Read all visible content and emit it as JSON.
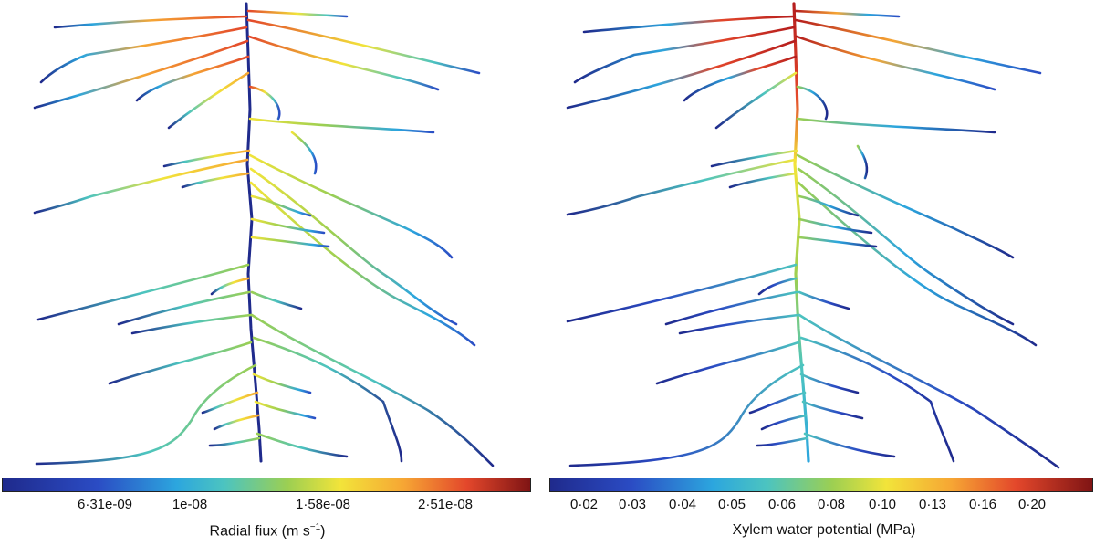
{
  "panels": [
    {
      "id": "radial-flux",
      "colorbar": {
        "label_main": "Radial fiux (m s",
        "label_sup": "−1",
        "label_close": ")",
        "ticks": [
          "6·31e-09",
          "1e-08",
          "1·58e-08",
          "2·51e-08"
        ]
      }
    },
    {
      "id": "xylem-potential",
      "colorbar": {
        "label": "Xylem water potential (MPa)",
        "ticks": [
          "0·02",
          "0·03",
          "0·04",
          "0·05",
          "0·06",
          "0·08",
          "0·10",
          "0·13",
          "0·16",
          "0·20"
        ]
      }
    }
  ],
  "colors": {
    "dark_blue": "#1f2a8c",
    "blue": "#2b4cc4",
    "cyan": "#2ca6de",
    "green": "#8fcf5a",
    "yellow": "#f2e43a",
    "orange": "#f6a634",
    "red": "#e3472b",
    "dark_red": "#b51d1d"
  }
}
